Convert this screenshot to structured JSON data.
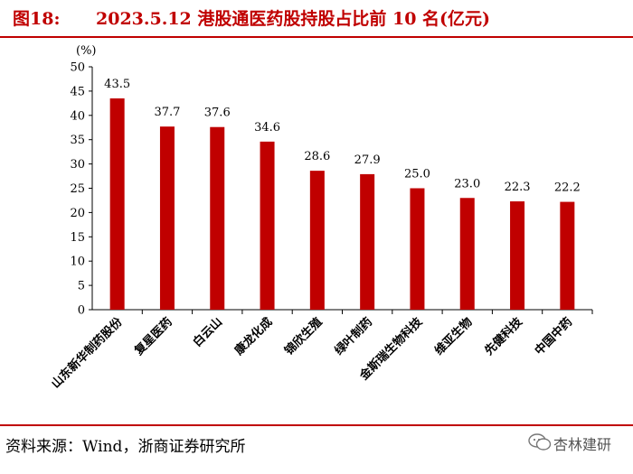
{
  "header": {
    "figure_label": "图18:",
    "title": "2023.5.12 港股通医药股持股占比前 10 名(亿元)"
  },
  "footer": {
    "source": "资料来源：Wind，浙商证券研究所"
  },
  "watermark": {
    "text": "杏林建研",
    "icon": "wechat-icon"
  },
  "chart_data": {
    "type": "bar",
    "title": "2023.5.12 港股通医药股持股占比前 10 名(亿元)",
    "ylabel": "(%)",
    "xlabel": "",
    "ylim": [
      0,
      50
    ],
    "yticks": [
      0,
      5,
      10,
      15,
      20,
      25,
      30,
      35,
      40,
      45,
      50
    ],
    "grid": false,
    "categories": [
      "山东新华制药股份",
      "复星医药",
      "白云山",
      "康龙化成",
      "锦欣生殖",
      "绿叶制药",
      "金斯瑞生物科技",
      "维亚生物",
      "先健科技",
      "中国中药"
    ],
    "values": [
      43.5,
      37.7,
      37.6,
      34.6,
      28.6,
      27.9,
      25.0,
      23.0,
      22.3,
      22.2
    ],
    "value_labels": [
      "43.5",
      "37.7",
      "37.6",
      "34.6",
      "28.6",
      "27.9",
      "25.0",
      "23.0",
      "22.3",
      "22.2"
    ],
    "colors": {
      "bar": "#c00000",
      "title": "#c00000",
      "rule": "#c00000"
    }
  }
}
